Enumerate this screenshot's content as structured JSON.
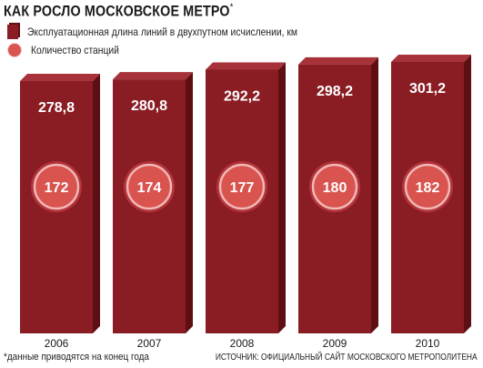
{
  "title": "КАК РОСЛО МОСКОВСКОЕ МЕТРО",
  "title_mark": "*",
  "legend": {
    "bars_label": "Эксплуатационная длина линий в двухпутном исчислении, км",
    "circles_label": "Количество станций"
  },
  "footnote": "*данные приводятся на конец года",
  "source": "источник: официальный сайт московского метрополитена",
  "colors": {
    "bar_front": "#8a1d24",
    "bar_side": "#5e0f14",
    "bar_top": "#a8323a",
    "circle_fill": "#d9534f",
    "circle_ring": "#f0b8b5",
    "circle_outer": "#b5343b"
  },
  "chart_data": {
    "type": "bar",
    "categories": [
      "2006",
      "2007",
      "2008",
      "2009",
      "2010"
    ],
    "series": [
      {
        "name": "Эксплуатационная длина линий в двухпутном исчислении, км",
        "values": [
          278.8,
          280.8,
          292.2,
          298.2,
          301.2
        ],
        "labels": [
          "278,8",
          "280,8",
          "292,2",
          "298,2",
          "301,2"
        ]
      },
      {
        "name": "Количество станций",
        "values": [
          172,
          174,
          177,
          180,
          182
        ],
        "labels": [
          "172",
          "174",
          "177",
          "180",
          "182"
        ]
      }
    ]
  }
}
